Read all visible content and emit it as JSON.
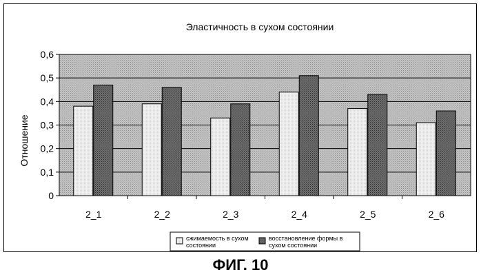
{
  "chart_data": {
    "type": "bar",
    "title": "Эластичность в сухом состоянии",
    "xlabel": "",
    "ylabel": "Отношение",
    "categories": [
      "2_1",
      "2_2",
      "2_3",
      "2_4",
      "2_5",
      "2_6"
    ],
    "series": [
      {
        "name": "сжимаемость в сухом состоянии",
        "values": [
          0.38,
          0.39,
          0.33,
          0.44,
          0.37,
          0.31
        ]
      },
      {
        "name": "восстановление формы в сухом состоянии",
        "values": [
          0.47,
          0.46,
          0.39,
          0.51,
          0.43,
          0.36
        ]
      }
    ],
    "ylim": [
      0,
      0.6
    ],
    "yticks": [
      "0",
      "0,1",
      "0,2",
      "0,3",
      "0,4",
      "0,5",
      "0,6"
    ],
    "grid": true,
    "legend_position": "bottom"
  },
  "figure_caption": "ФИГ. 10"
}
